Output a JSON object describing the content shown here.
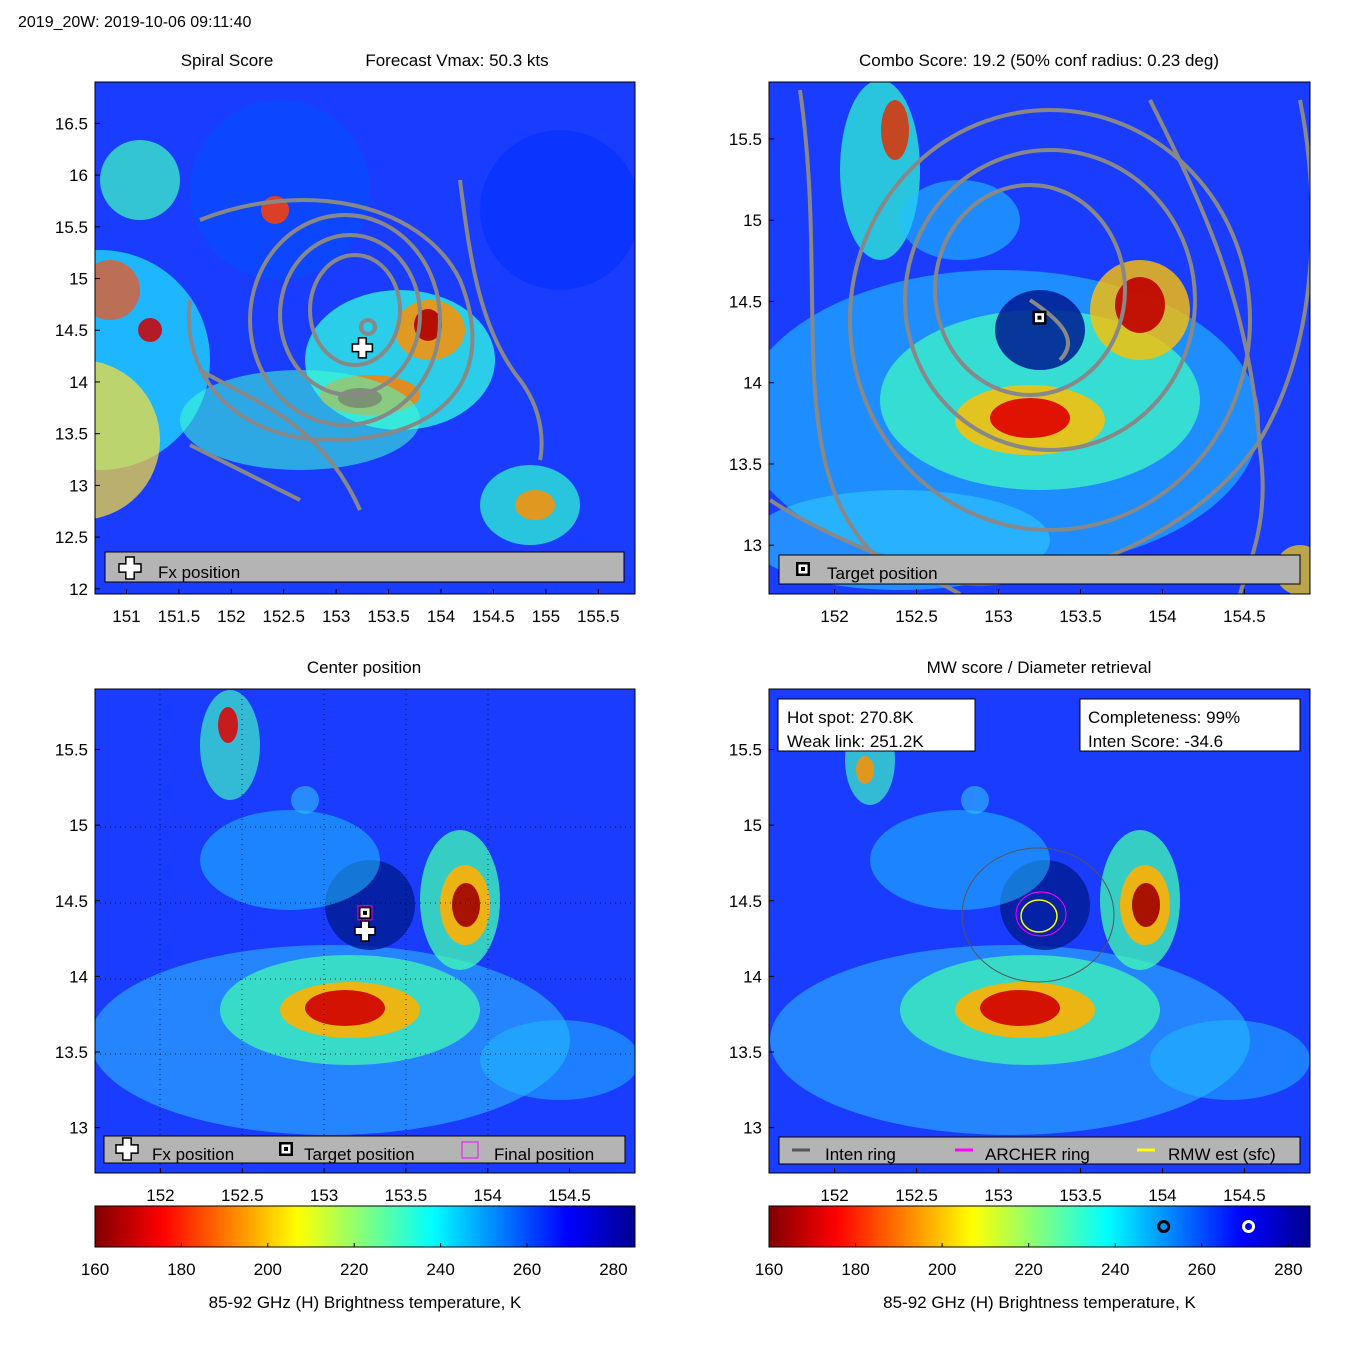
{
  "header": {
    "title": "2019_20W: 2019-10-06 09:11:40"
  },
  "colors": {
    "contour": "#888888",
    "legend_bg": "#b4b4b4",
    "inten_ring": "#555555",
    "archer_ring": "#ff00ff",
    "rmw_ring": "#ffff00"
  },
  "chart_data": [
    {
      "type": "heatmap",
      "id": "spiral",
      "title": "Spiral Score",
      "title2": "Forecast Vmax: 50.3 kts",
      "xlim": [
        150.7,
        155.85
      ],
      "ylim": [
        11.95,
        16.9
      ],
      "xticks": [
        151,
        151.5,
        152,
        152.5,
        153,
        153.5,
        154,
        154.5,
        155,
        155.5
      ],
      "yticks": [
        12,
        12.5,
        13,
        13.5,
        14,
        14.5,
        15,
        15.5,
        16,
        16.5
      ],
      "center": [
        153.4,
        14.55
      ],
      "markers": [
        {
          "type": "fx-cross",
          "x": 153.25,
          "y": 14.33
        }
      ],
      "legend": [
        {
          "icon": "fx-cross-icon",
          "label": "Fx position"
        }
      ]
    },
    {
      "type": "heatmap",
      "id": "combo",
      "title": "Combo Score: 19.2  (50% conf radius: 0.23 deg)",
      "xlim": [
        151.6,
        154.9
      ],
      "ylim": [
        12.7,
        15.85
      ],
      "xticks": [
        152,
        152.5,
        153,
        153.5,
        154,
        154.5
      ],
      "yticks": [
        13,
        13.5,
        14,
        14.5,
        15,
        15.5
      ],
      "center": [
        153.3,
        14.35
      ],
      "markers": [
        {
          "type": "target-square",
          "x": 153.25,
          "y": 14.4
        }
      ],
      "legend": [
        {
          "icon": "target-square-icon",
          "label": "Target position"
        }
      ]
    },
    {
      "type": "heatmap",
      "id": "center",
      "title": "Center position",
      "xlim": [
        151.6,
        154.9
      ],
      "ylim": [
        12.7,
        15.9
      ],
      "xticks": [
        152,
        152.5,
        153,
        153.5,
        154,
        154.5
      ],
      "yticks": [
        13,
        13.5,
        14,
        14.5,
        15,
        15.5
      ],
      "center": [
        153.3,
        14.35
      ],
      "markers": [
        {
          "type": "target-square",
          "x": 153.25,
          "y": 14.42
        },
        {
          "type": "fx-cross",
          "x": 153.25,
          "y": 14.3
        }
      ],
      "legend": [
        {
          "icon": "fx-cross-icon",
          "label": "Fx position"
        },
        {
          "icon": "target-square-icon",
          "label": "Target position"
        },
        {
          "icon": "final-square-icon",
          "label": "Final position"
        }
      ],
      "colorbar": {
        "range": [
          160,
          285
        ],
        "ticks": [
          160,
          180,
          200,
          220,
          240,
          260,
          280
        ],
        "label": "85-92 GHz (H) Brightness temperature, K"
      }
    },
    {
      "type": "heatmap",
      "id": "mw",
      "title": "MW score / Diameter retrieval",
      "xlim": [
        151.6,
        154.9
      ],
      "ylim": [
        12.7,
        15.9
      ],
      "xticks": [
        152,
        152.5,
        153,
        153.5,
        154,
        154.5
      ],
      "yticks": [
        13,
        13.5,
        14,
        14.5,
        15,
        15.5
      ],
      "center": [
        153.3,
        14.35
      ],
      "info_left": {
        "hot_spot": "Hot spot: 270.8K",
        "weak_link": "Weak link: 251.2K"
      },
      "info_right": {
        "completeness": "Completeness: 99%",
        "inten_score": "Inten Score: -34.6"
      },
      "legend": [
        {
          "icon": "inten-ring-icon",
          "label": "Inten ring"
        },
        {
          "icon": "archer-ring-icon",
          "label": "ARCHER ring"
        },
        {
          "icon": "rmw-ring-icon",
          "label": "RMW est (sfc)"
        }
      ],
      "colorbar": {
        "range": [
          160,
          285
        ],
        "ticks": [
          160,
          180,
          200,
          220,
          240,
          260,
          280
        ],
        "label": "85-92 GHz (H) Brightness temperature, K",
        "markers": [
          {
            "value": 251.2,
            "style": "black-ring"
          },
          {
            "value": 270.8,
            "style": "white-ring"
          }
        ]
      }
    }
  ]
}
